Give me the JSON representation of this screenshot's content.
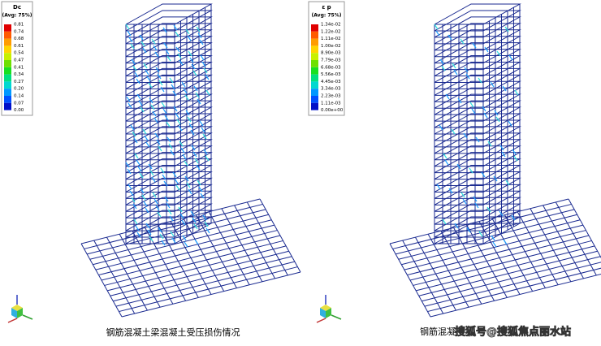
{
  "panels": [
    {
      "legend": {
        "title": "Dc",
        "subtitle": "(Avg: 75%)",
        "labels": [
          "0.81",
          "0.74",
          "0.68",
          "0.61",
          "0.54",
          "0.47",
          "0.41",
          "0.34",
          "0.27",
          "0.20",
          "0.14",
          "0.07",
          "0.00"
        ]
      },
      "caption": "钢筋混凝土梁混凝土受压损伤情况"
    },
    {
      "legend": {
        "title": "ε p",
        "subtitle": "(Avg: 75%)",
        "labels": [
          "1.34e-02",
          "1.22e-02",
          "1.11e-02",
          "1.00e-02",
          "8.90e-03",
          "7.79e-03",
          "6.68e-03",
          "5.56e-03",
          "4.45e-03",
          "3.34e-03",
          "2.23e-03",
          "1.11e-03",
          "0.00e+00"
        ]
      },
      "caption": "钢筋混凝"
    }
  ],
  "watermark": "搜狐号@搜狐焦点丽水站"
}
